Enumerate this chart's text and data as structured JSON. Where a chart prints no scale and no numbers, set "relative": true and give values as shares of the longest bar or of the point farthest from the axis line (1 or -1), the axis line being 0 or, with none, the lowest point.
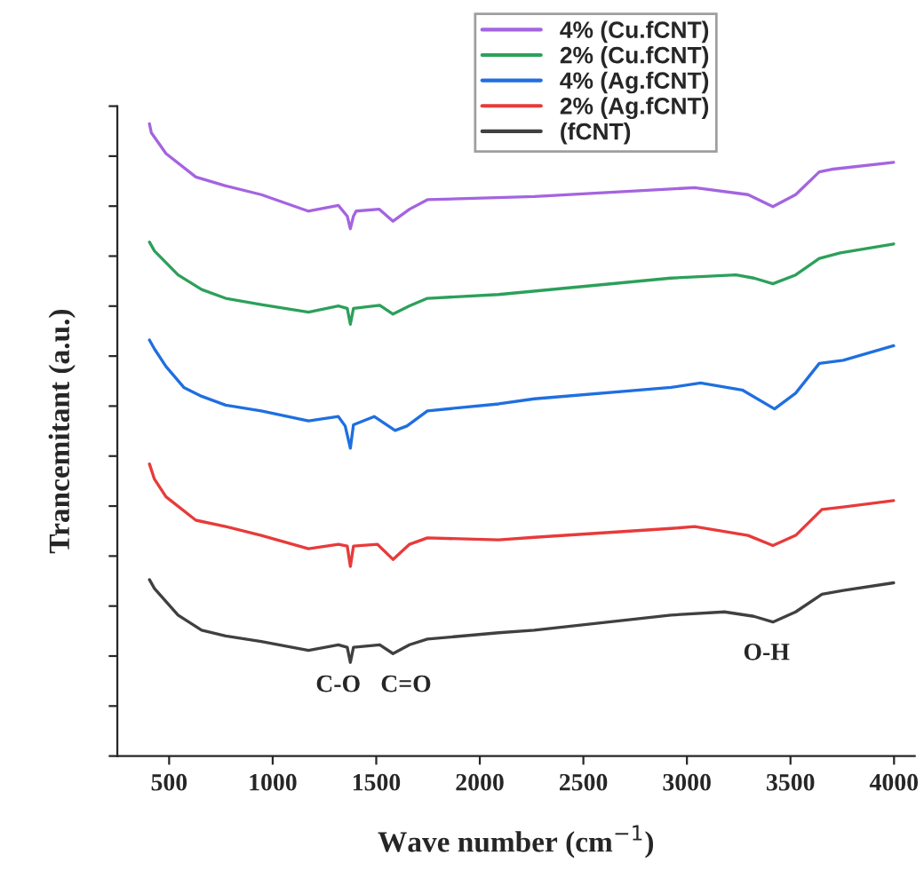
{
  "chart_data": {
    "type": "line",
    "relative": true,
    "xlabel": "Wave number (cm$^{−1}$)",
    "ylabel": "Trancemitant (a.u.)",
    "xlim": [
      250,
      4100
    ],
    "xticks": [
      500,
      1000,
      1500,
      2000,
      2500,
      3000,
      3500,
      4000
    ],
    "legend": "top",
    "grid": false,
    "marker": "none",
    "line_style": "solid",
    "annotations": [
      "C-O",
      "C=O",
      "O-H"
    ],
    "series": [
      {
        "name": "4% (Cu.fCNT)",
        "color": "#a464e0",
        "x": [
          405,
          414,
          485,
          629,
          773,
          945,
          1171,
          1317,
          1360,
          1375,
          1390,
          1403,
          1515,
          1581,
          1661,
          1747,
          2263,
          2923,
          3037,
          3295,
          3415,
          3525,
          3639,
          3697,
          3998
        ],
        "values": [
          1.0,
          0.986,
          0.953,
          0.916,
          0.902,
          0.888,
          0.862,
          0.871,
          0.854,
          0.834,
          0.854,
          0.862,
          0.865,
          0.846,
          0.865,
          0.88,
          0.885,
          0.897,
          0.899,
          0.888,
          0.869,
          0.888,
          0.924,
          0.928,
          0.939
        ]
      },
      {
        "name": "2% (Cu.fCNT)",
        "color": "#2ca05a",
        "x": [
          405,
          429,
          543,
          657,
          773,
          945,
          1173,
          1317,
          1360,
          1375,
          1390,
          1517,
          1581,
          1661,
          1747,
          2091,
          2923,
          3237,
          3323,
          3415,
          3525,
          3639,
          3740,
          3998
        ],
        "values": [
          0.813,
          0.799,
          0.761,
          0.738,
          0.724,
          0.714,
          0.702,
          0.712,
          0.708,
          0.683,
          0.708,
          0.713,
          0.699,
          0.712,
          0.724,
          0.73,
          0.756,
          0.761,
          0.756,
          0.747,
          0.761,
          0.787,
          0.796,
          0.81
        ]
      },
      {
        "name": "4% (Ag.fCNT)",
        "color": "#1f6fe0",
        "x": [
          405,
          429,
          485,
          571,
          657,
          773,
          945,
          1173,
          1317,
          1350,
          1375,
          1390,
          1490,
          1591,
          1648,
          1747,
          2091,
          2263,
          2923,
          3066,
          3267,
          3423,
          3525,
          3639,
          3754,
          3998
        ],
        "values": [
          0.658,
          0.644,
          0.616,
          0.583,
          0.569,
          0.555,
          0.546,
          0.53,
          0.537,
          0.522,
          0.487,
          0.524,
          0.537,
          0.515,
          0.522,
          0.546,
          0.557,
          0.565,
          0.583,
          0.59,
          0.579,
          0.549,
          0.574,
          0.621,
          0.626,
          0.649
        ]
      },
      {
        "name": "2% (Ag.fCNT)",
        "color": "#e83a3a",
        "x": [
          405,
          429,
          485,
          629,
          773,
          945,
          1173,
          1317,
          1360,
          1375,
          1390,
          1505,
          1581,
          1661,
          1747,
          2091,
          2263,
          2923,
          3037,
          3295,
          3415,
          3525,
          3652,
          3754,
          3998
        ],
        "values": [
          0.462,
          0.438,
          0.41,
          0.373,
          0.363,
          0.349,
          0.328,
          0.335,
          0.332,
          0.3,
          0.332,
          0.335,
          0.311,
          0.335,
          0.345,
          0.342,
          0.346,
          0.36,
          0.363,
          0.349,
          0.333,
          0.349,
          0.39,
          0.394,
          0.404
        ]
      },
      {
        "name": "(fCNT)",
        "color": "#404040",
        "x": [
          405,
          429,
          543,
          657,
          773,
          945,
          1173,
          1317,
          1360,
          1375,
          1390,
          1517,
          1581,
          1661,
          1747,
          2091,
          2263,
          2923,
          3181,
          3323,
          3415,
          3525,
          3652,
          3754,
          3998
        ],
        "values": [
          0.279,
          0.265,
          0.223,
          0.199,
          0.19,
          0.181,
          0.167,
          0.176,
          0.172,
          0.148,
          0.172,
          0.176,
          0.162,
          0.176,
          0.185,
          0.195,
          0.199,
          0.223,
          0.228,
          0.221,
          0.212,
          0.228,
          0.256,
          0.262,
          0.274
        ]
      }
    ]
  }
}
